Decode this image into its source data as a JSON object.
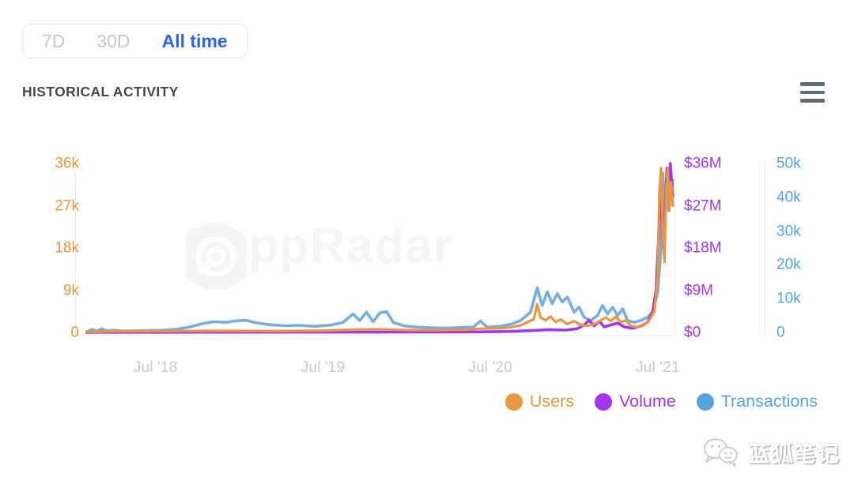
{
  "time_range": {
    "options": [
      {
        "label": "7D",
        "active": false
      },
      {
        "label": "30D",
        "active": false
      },
      {
        "label": "All time",
        "active": true
      }
    ],
    "active_color": "#2B63EE",
    "inactive_color": "#C4C8CC"
  },
  "header": {
    "title": "HISTORICAL ACTIVITY"
  },
  "watermark": {
    "text": "DappRadar"
  },
  "footer_watermark": {
    "text": "蓝狐笔记"
  },
  "chart_data": {
    "type": "line",
    "title": "HISTORICAL ACTIVITY",
    "x_range": [
      2018.02,
      2021.6
    ],
    "x_ticks": [
      {
        "x": 2018.5,
        "label": "Jul '18"
      },
      {
        "x": 2019.5,
        "label": "Jul '19"
      },
      {
        "x": 2020.5,
        "label": "Jul '20"
      },
      {
        "x": 2021.5,
        "label": "Jul '21"
      }
    ],
    "grid": false,
    "axes": [
      {
        "id": "users",
        "side": "left",
        "color": "#E8973F",
        "ylim": [
          0,
          36000
        ],
        "unit": "users",
        "tick_labels": [
          "36k",
          "27k",
          "18k",
          "9k",
          "0"
        ]
      },
      {
        "id": "volume",
        "side": "right",
        "color": "#A435EF",
        "ylim": [
          0,
          36000000
        ],
        "unit": "USD",
        "tick_labels": [
          "$36M",
          "$27M",
          "$18M",
          "$9M",
          "$0"
        ]
      },
      {
        "id": "transactions",
        "side": "far-right",
        "color": "#55A4DF",
        "ylim": [
          0,
          50000
        ],
        "unit": "transactions",
        "tick_labels": [
          "50k",
          "40k",
          "30k",
          "20k",
          "10k",
          "0"
        ]
      }
    ],
    "series": [
      {
        "name": "Transactions",
        "axis": "transactions",
        "unit": "k",
        "color": "#74AFDF",
        "stroke_width": 3.6,
        "points": [
          [
            2018.09,
            0.2
          ],
          [
            2018.12,
            0.9
          ],
          [
            2018.15,
            0.4
          ],
          [
            2018.18,
            1.1
          ],
          [
            2018.21,
            0.5
          ],
          [
            2018.25,
            0.7
          ],
          [
            2018.3,
            0.4
          ],
          [
            2018.38,
            0.5
          ],
          [
            2018.46,
            0.6
          ],
          [
            2018.54,
            0.7
          ],
          [
            2018.62,
            0.9
          ],
          [
            2018.7,
            1.6
          ],
          [
            2018.78,
            2.6
          ],
          [
            2018.85,
            3.2
          ],
          [
            2018.92,
            3.0
          ],
          [
            2018.98,
            3.4
          ],
          [
            2019.04,
            3.6
          ],
          [
            2019.1,
            2.9
          ],
          [
            2019.18,
            2.3
          ],
          [
            2019.27,
            2.0
          ],
          [
            2019.36,
            2.1
          ],
          [
            2019.45,
            1.8
          ],
          [
            2019.55,
            2.2
          ],
          [
            2019.62,
            3.0
          ],
          [
            2019.68,
            5.5
          ],
          [
            2019.72,
            3.5
          ],
          [
            2019.76,
            6.0
          ],
          [
            2019.8,
            3.2
          ],
          [
            2019.84,
            5.8
          ],
          [
            2019.88,
            6.2
          ],
          [
            2019.92,
            3.0
          ],
          [
            2019.98,
            2.0
          ],
          [
            2020.06,
            1.6
          ],
          [
            2020.15,
            1.4
          ],
          [
            2020.25,
            1.3
          ],
          [
            2020.33,
            1.5
          ],
          [
            2020.4,
            1.6
          ],
          [
            2020.44,
            3.4
          ],
          [
            2020.48,
            1.6
          ],
          [
            2020.55,
            1.8
          ],
          [
            2020.62,
            2.4
          ],
          [
            2020.68,
            3.5
          ],
          [
            2020.74,
            6.0
          ],
          [
            2020.78,
            13.2
          ],
          [
            2020.81,
            8.0
          ],
          [
            2020.84,
            12.0
          ],
          [
            2020.87,
            8.5
          ],
          [
            2020.9,
            11.5
          ],
          [
            2020.93,
            9.0
          ],
          [
            2020.96,
            10.5
          ],
          [
            2021.0,
            6.0
          ],
          [
            2021.03,
            7.5
          ],
          [
            2021.06,
            4.5
          ],
          [
            2021.1,
            3.5
          ],
          [
            2021.14,
            5.0
          ],
          [
            2021.17,
            8.0
          ],
          [
            2021.2,
            5.5
          ],
          [
            2021.23,
            7.5
          ],
          [
            2021.26,
            5.0
          ],
          [
            2021.29,
            7.0
          ],
          [
            2021.32,
            3.5
          ],
          [
            2021.36,
            3.0
          ],
          [
            2021.4,
            3.6
          ],
          [
            2021.44,
            4.5
          ],
          [
            2021.47,
            6.0
          ],
          [
            2021.5,
            12.0
          ],
          [
            2021.52,
            25.0
          ],
          [
            2021.53,
            47.0
          ],
          [
            2021.545,
            34.0
          ],
          [
            2021.555,
            46.0
          ],
          [
            2021.565,
            36.0
          ],
          [
            2021.575,
            48.0
          ],
          [
            2021.585,
            42.0
          ],
          [
            2021.59,
            45.0
          ]
        ]
      },
      {
        "name": "Volume",
        "axis": "volume",
        "unit": "$M",
        "color": "#A435EF",
        "stroke_width": 3.6,
        "points": [
          [
            2018.09,
            0.02
          ],
          [
            2018.5,
            0.03
          ],
          [
            2019.0,
            0.05
          ],
          [
            2019.5,
            0.06
          ],
          [
            2020.0,
            0.08
          ],
          [
            2020.4,
            0.12
          ],
          [
            2020.6,
            0.2
          ],
          [
            2020.75,
            0.4
          ],
          [
            2020.85,
            0.6
          ],
          [
            2020.95,
            0.5
          ],
          [
            2021.02,
            0.8
          ],
          [
            2021.06,
            1.6
          ],
          [
            2021.09,
            2.6
          ],
          [
            2021.12,
            1.4
          ],
          [
            2021.15,
            2.4
          ],
          [
            2021.18,
            1.2
          ],
          [
            2021.22,
            1.6
          ],
          [
            2021.26,
            2.0
          ],
          [
            2021.3,
            1.2
          ],
          [
            2021.35,
            0.9
          ],
          [
            2021.4,
            1.4
          ],
          [
            2021.44,
            2.2
          ],
          [
            2021.47,
            4.5
          ],
          [
            2021.49,
            9.0
          ],
          [
            2021.505,
            20.0
          ],
          [
            2021.515,
            31.0
          ],
          [
            2021.525,
            26.0
          ],
          [
            2021.535,
            18.0
          ],
          [
            2021.545,
            27.0
          ],
          [
            2021.555,
            35.0
          ],
          [
            2021.565,
            30.0
          ],
          [
            2021.575,
            36.0
          ],
          [
            2021.585,
            31.0
          ],
          [
            2021.59,
            29.0
          ]
        ]
      },
      {
        "name": "Users",
        "axis": "users",
        "unit": "k",
        "color": "#E8973F",
        "stroke_width": 3.2,
        "points": [
          [
            2018.09,
            0.15
          ],
          [
            2018.3,
            0.25
          ],
          [
            2018.6,
            0.3
          ],
          [
            2018.9,
            0.35
          ],
          [
            2019.2,
            0.3
          ],
          [
            2019.5,
            0.4
          ],
          [
            2019.7,
            0.6
          ],
          [
            2019.8,
            0.7
          ],
          [
            2019.9,
            0.6
          ],
          [
            2020.0,
            0.5
          ],
          [
            2020.2,
            0.5
          ],
          [
            2020.35,
            0.6
          ],
          [
            2020.45,
            0.8
          ],
          [
            2020.55,
            0.9
          ],
          [
            2020.62,
            1.1
          ],
          [
            2020.68,
            1.5
          ],
          [
            2020.72,
            2.2
          ],
          [
            2020.76,
            2.8
          ],
          [
            2020.78,
            6.0
          ],
          [
            2020.8,
            3.2
          ],
          [
            2020.83,
            2.6
          ],
          [
            2020.86,
            3.4
          ],
          [
            2020.89,
            2.2
          ],
          [
            2020.92,
            2.8
          ],
          [
            2020.96,
            1.8
          ],
          [
            2021.0,
            2.4
          ],
          [
            2021.04,
            1.6
          ],
          [
            2021.08,
            1.4
          ],
          [
            2021.12,
            1.8
          ],
          [
            2021.16,
            2.6
          ],
          [
            2021.19,
            3.2
          ],
          [
            2021.22,
            2.4
          ],
          [
            2021.25,
            3.4
          ],
          [
            2021.28,
            2.2
          ],
          [
            2021.31,
            2.6
          ],
          [
            2021.34,
            1.4
          ],
          [
            2021.38,
            1.2
          ],
          [
            2021.42,
            1.8
          ],
          [
            2021.45,
            2.6
          ],
          [
            2021.48,
            4.5
          ],
          [
            2021.5,
            12.0
          ],
          [
            2021.51,
            30.0
          ],
          [
            2021.52,
            35.0
          ],
          [
            2021.53,
            22.0
          ],
          [
            2021.54,
            15.0
          ],
          [
            2021.55,
            30.0
          ],
          [
            2021.56,
            35.0
          ],
          [
            2021.57,
            26.0
          ],
          [
            2021.58,
            32.0
          ],
          [
            2021.59,
            27.0
          ]
        ]
      }
    ],
    "legend": {
      "position": "bottom-right",
      "items": [
        {
          "label": "Users",
          "color": "#E8973F"
        },
        {
          "label": "Volume",
          "color": "#A435EF"
        },
        {
          "label": "Transactions",
          "color": "#55A4DF"
        }
      ]
    }
  }
}
